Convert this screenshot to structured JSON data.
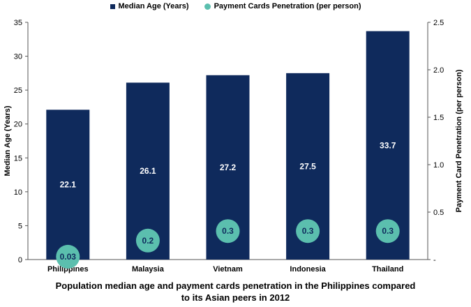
{
  "chart_data": {
    "type": "bar",
    "categories": [
      "Philippines",
      "Malaysia",
      "Vietnam",
      "Indonesia",
      "Thailand"
    ],
    "series": [
      {
        "name": "Median Age (Years)",
        "kind": "bar",
        "axis": "left",
        "color": "#0f2a5c",
        "values": [
          22.1,
          26.1,
          27.2,
          27.5,
          33.7
        ],
        "labels": [
          "22.1",
          "26.1",
          "27.2",
          "27.5",
          "33.7"
        ]
      },
      {
        "name": "Payment Cards Penetration (per person)",
        "kind": "scatter",
        "axis": "right",
        "color": "#5bbfae",
        "values": [
          0.03,
          0.2,
          0.3,
          0.3,
          0.3
        ],
        "labels": [
          "0.03",
          "0.2",
          "0.3",
          "0.3",
          "0.3"
        ]
      }
    ],
    "ylabel": "Median Age (Years)",
    "y2label": "Payment Card Penetration (per person)",
    "ylim": [
      0,
      35
    ],
    "yticks": [
      "0",
      "5",
      "10",
      "15",
      "20",
      "25",
      "30",
      "35"
    ],
    "y2lim": [
      0,
      2.5
    ],
    "y2ticks": [
      "-",
      "0.5",
      "1.0",
      "1.5",
      "2.0",
      "2.5"
    ],
    "legend_position": "top-center",
    "grid": false
  },
  "caption": {
    "line1": "Population median age and payment cards penetration in the Philippines compared",
    "line2": "to its Asian peers in 2012"
  }
}
